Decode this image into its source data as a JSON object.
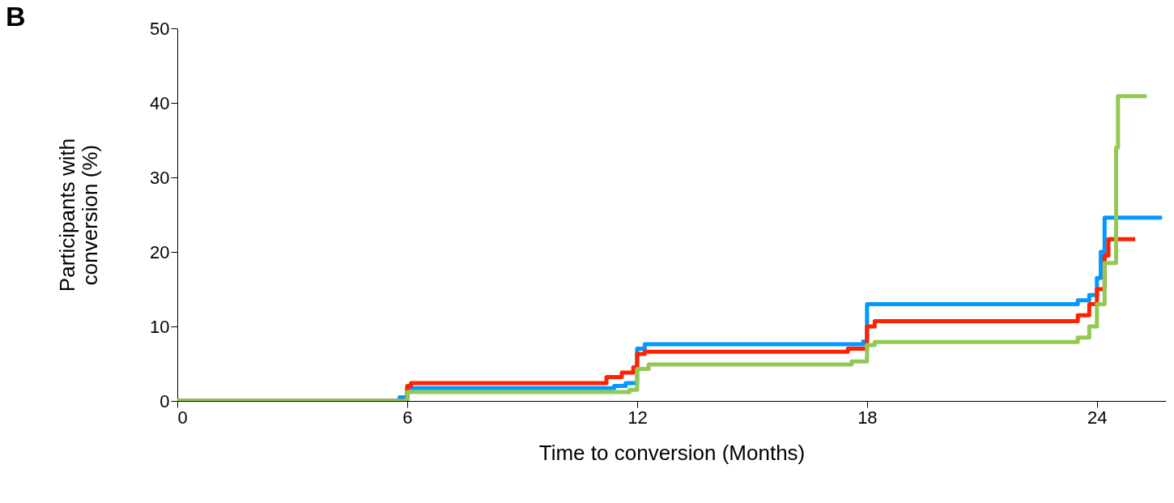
{
  "chart_data": {
    "type": "step",
    "xlabel": "Time to conversion (Months)",
    "ylabel": "Participants with\nconversion (%)",
    "annotations": [
      "B"
    ],
    "xlim": [
      0,
      25.8
    ],
    "xticks": [
      0,
      6,
      12,
      18,
      24
    ],
    "ylim": [
      0,
      50
    ],
    "yticks": [
      0,
      10,
      20,
      30,
      40,
      50
    ],
    "grid": false,
    "marker": "none",
    "line_style": "solid",
    "series": [
      {
        "color": "#0099ff",
        "x": [
          0,
          5.8,
          6.0,
          11.4,
          11.7,
          12.0,
          12.2,
          17.9,
          18.0,
          23.5,
          23.8,
          24.0,
          24.1,
          24.2,
          25.7
        ],
        "values": [
          0,
          0.5,
          1.7,
          2.0,
          2.4,
          7.0,
          7.6,
          8.0,
          13.0,
          13.5,
          14.2,
          16.5,
          20.0,
          24.6,
          24.6
        ]
      },
      {
        "color": "#ff2200",
        "x": [
          0,
          6.0,
          6.1,
          11.2,
          11.6,
          11.9,
          12.0,
          12.2,
          17.5,
          18.0,
          18.2,
          23.5,
          23.8,
          24.0,
          24.2,
          24.3,
          25.0
        ],
        "values": [
          0,
          2.0,
          2.4,
          3.2,
          3.8,
          4.5,
          6.3,
          6.6,
          7.0,
          10.0,
          10.7,
          11.5,
          13.0,
          15.0,
          19.5,
          21.7,
          21.7
        ]
      },
      {
        "color": "#92c955",
        "x": [
          0,
          6.0,
          11.8,
          12.0,
          12.3,
          17.6,
          18.0,
          18.2,
          23.5,
          23.8,
          24.0,
          24.2,
          24.5,
          24.55,
          25.3
        ],
        "values": [
          0,
          1.2,
          1.5,
          4.3,
          4.9,
          5.3,
          7.5,
          7.9,
          8.5,
          10.0,
          13.0,
          18.5,
          34.0,
          40.9,
          40.9
        ]
      }
    ]
  }
}
